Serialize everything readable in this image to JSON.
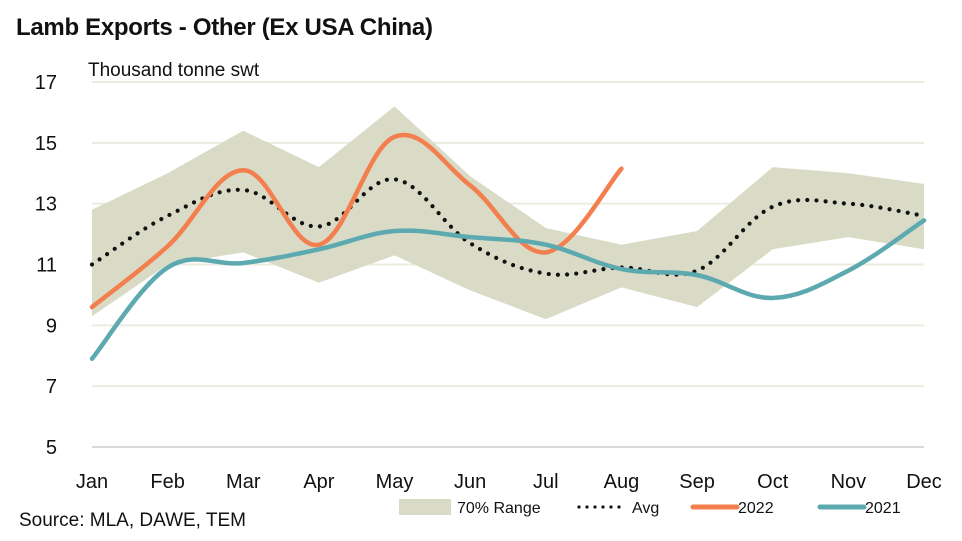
{
  "chart_data": {
    "type": "line",
    "title": "Lamb Exports - Other (Ex USA China)",
    "ylabel": "Thousand tonne swt",
    "xlabel": "",
    "source": "Source: MLA, DAWE, TEM",
    "categories": [
      "Jan",
      "Feb",
      "Mar",
      "Apr",
      "May",
      "Jun",
      "Jul",
      "Aug",
      "Sep",
      "Oct",
      "Nov",
      "Dec"
    ],
    "ylim": [
      5,
      17
    ],
    "yticks": [
      5,
      7,
      9,
      11,
      13,
      15,
      17
    ],
    "ytick_labels": [
      "5",
      "7",
      "9",
      "11",
      "13",
      "15",
      "17"
    ],
    "grid": true,
    "legend_position": "bottom-right",
    "range": {
      "name": "70% Range",
      "color": "#d9dbc6",
      "upper": [
        12.8,
        14.0,
        15.4,
        14.2,
        16.2,
        13.9,
        12.2,
        11.65,
        12.1,
        14.2,
        14.0,
        13.65
      ],
      "lower": [
        9.3,
        11.0,
        11.4,
        10.4,
        11.3,
        10.15,
        9.2,
        10.25,
        9.6,
        11.5,
        11.9,
        11.5
      ]
    },
    "series": [
      {
        "name": "Avg",
        "color": "#111111",
        "style": "dotted",
        "values": [
          11.0,
          12.6,
          13.45,
          12.25,
          13.8,
          11.7,
          10.7,
          10.9,
          10.8,
          12.9,
          13.0,
          12.6
        ]
      },
      {
        "name": "2022",
        "color": "#f37f4f",
        "style": "solid",
        "values": [
          9.6,
          11.6,
          14.1,
          11.65,
          15.2,
          13.6,
          11.4,
          14.15,
          null,
          null,
          null,
          null
        ]
      },
      {
        "name": "2021",
        "color": "#5ca9b0",
        "style": "solid",
        "values": [
          7.9,
          10.9,
          11.05,
          11.5,
          12.1,
          11.9,
          11.65,
          10.85,
          10.65,
          9.9,
          10.8,
          12.45
        ]
      }
    ],
    "legend": [
      "70% Range",
      "Avg",
      "2022",
      "2021"
    ]
  }
}
